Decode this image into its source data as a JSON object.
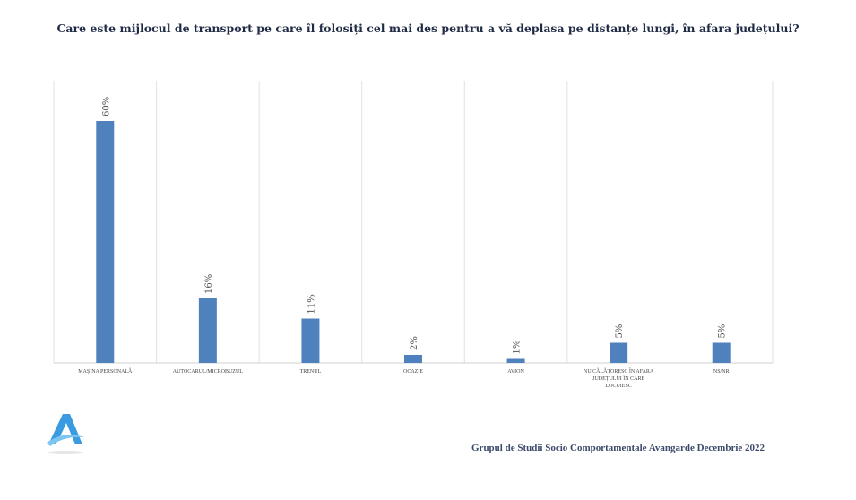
{
  "chart_data": {
    "type": "bar",
    "title": "Care este mijlocul de transport pe care îl folosiți cel mai des pentru a vă deplasa pe distanțe lungi, în afara județului?",
    "categories": [
      "MAȘINA PERSONALĂ",
      "AUTOCARUL/MICROBUZUL",
      "TRENUL",
      "OCAZIE",
      "AVION",
      "NU CĂLĂTORESC ÎN AFARA JUDEȚULUI ÎN CARE LOCUIESC",
      "NS/NR"
    ],
    "values": [
      60,
      16,
      11,
      2,
      1,
      5,
      5
    ],
    "labels": [
      "60%",
      "16%",
      "11%",
      "2%",
      "1%",
      "5%",
      "5%"
    ],
    "ylim": [
      0,
      70
    ],
    "grid": "vertical",
    "bar_color": "#4f81bd"
  },
  "footer": "Grupul de Studii Socio Comportamentale Avangarde Decembrie 2022"
}
